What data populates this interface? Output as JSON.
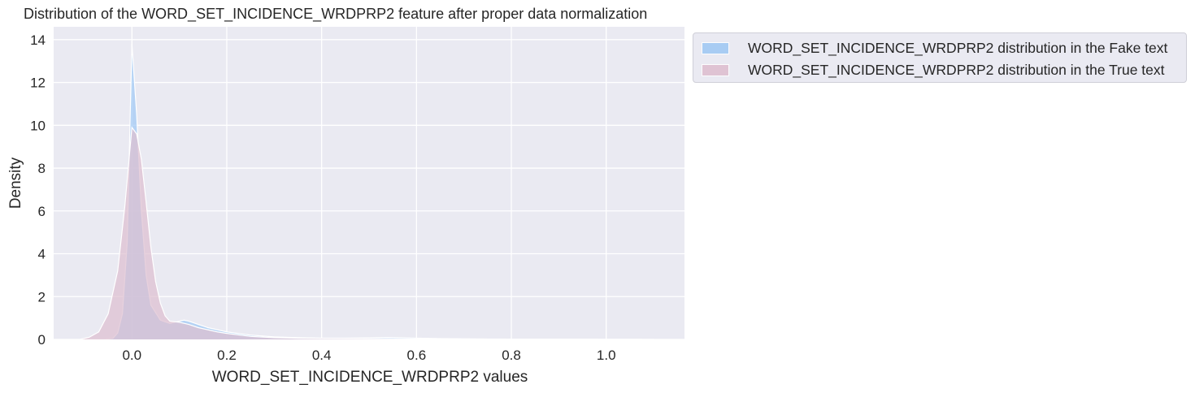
{
  "chart_data": {
    "type": "area",
    "title": "Distribution of the WORD_SET_INCIDENCE_WRDPRP2 feature after proper data normalization",
    "xlabel": "WORD_SET_INCIDENCE_WRDPRP2 values",
    "ylabel": "Density",
    "xlim": [
      -0.165,
      1.165
    ],
    "ylim": [
      0,
      14.6
    ],
    "xticks": [
      0.0,
      0.2,
      0.4,
      0.6,
      0.8,
      1.0
    ],
    "xtick_labels": [
      "0.0",
      "0.2",
      "0.4",
      "0.6",
      "0.8",
      "1.0"
    ],
    "yticks": [
      0,
      2,
      4,
      6,
      8,
      10,
      12,
      14
    ],
    "ytick_labels": [
      "0",
      "2",
      "4",
      "6",
      "8",
      "10",
      "12",
      "14"
    ],
    "grid": true,
    "legend_position": "outside-top-right",
    "series": [
      {
        "name": "WORD_SET_INCIDENCE_WRDPRP2 distribution in the Fake text",
        "color": "#a1c9f4",
        "points": [
          [
            -0.06,
            0
          ],
          [
            -0.04,
            0.05
          ],
          [
            -0.03,
            0.3
          ],
          [
            -0.02,
            1.2
          ],
          [
            -0.01,
            4.5
          ],
          [
            0.0,
            13.8
          ],
          [
            0.01,
            10.5
          ],
          [
            0.02,
            6.0
          ],
          [
            0.03,
            3.0
          ],
          [
            0.04,
            1.6
          ],
          [
            0.06,
            0.9
          ],
          [
            0.08,
            0.75
          ],
          [
            0.1,
            0.85
          ],
          [
            0.11,
            0.9
          ],
          [
            0.12,
            0.85
          ],
          [
            0.14,
            0.7
          ],
          [
            0.16,
            0.55
          ],
          [
            0.18,
            0.45
          ],
          [
            0.2,
            0.35
          ],
          [
            0.25,
            0.2
          ],
          [
            0.3,
            0.12
          ],
          [
            0.35,
            0.08
          ],
          [
            0.4,
            0.06
          ],
          [
            0.45,
            0.06
          ],
          [
            0.5,
            0.07
          ],
          [
            0.54,
            0.09
          ],
          [
            0.58,
            0.07
          ],
          [
            0.65,
            0.04
          ],
          [
            0.75,
            0.02
          ],
          [
            0.85,
            0.01
          ],
          [
            1.0,
            0.005
          ],
          [
            1.1,
            0
          ]
        ]
      },
      {
        "name": "WORD_SET_INCIDENCE_WRDPRP2 distribution in the True text",
        "color": "#debfd0",
        "points": [
          [
            -0.11,
            0
          ],
          [
            -0.09,
            0.1
          ],
          [
            -0.07,
            0.35
          ],
          [
            -0.05,
            1.2
          ],
          [
            -0.03,
            3.2
          ],
          [
            -0.015,
            6.2
          ],
          [
            0.0,
            9.9
          ],
          [
            0.01,
            9.6
          ],
          [
            0.02,
            8.4
          ],
          [
            0.03,
            6.4
          ],
          [
            0.04,
            4.3
          ],
          [
            0.05,
            2.7
          ],
          [
            0.06,
            1.7
          ],
          [
            0.07,
            1.1
          ],
          [
            0.08,
            0.85
          ],
          [
            0.1,
            0.8
          ],
          [
            0.12,
            0.7
          ],
          [
            0.14,
            0.55
          ],
          [
            0.16,
            0.45
          ],
          [
            0.18,
            0.35
          ],
          [
            0.2,
            0.28
          ],
          [
            0.25,
            0.14
          ],
          [
            0.3,
            0.08
          ],
          [
            0.35,
            0.05
          ],
          [
            0.4,
            0.04
          ],
          [
            0.5,
            0.03
          ],
          [
            0.6,
            0.02
          ],
          [
            0.7,
            0.015
          ],
          [
            0.8,
            0.01
          ],
          [
            0.9,
            0.01
          ],
          [
            1.0,
            0.005
          ],
          [
            1.1,
            0
          ]
        ]
      }
    ]
  }
}
